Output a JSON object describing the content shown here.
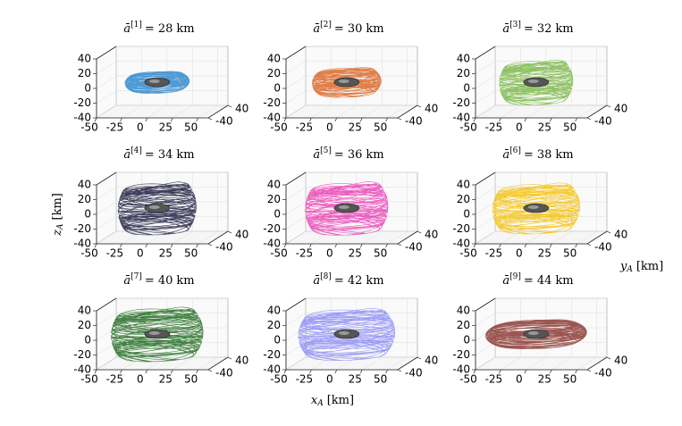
{
  "figure": {
    "xlabel": {
      "var": "x",
      "sub": "A",
      "unit": "[km]"
    },
    "ylabel": {
      "var": "y",
      "sub": "A",
      "unit": "[km]"
    },
    "zlabel": {
      "var": "z",
      "sub": "A",
      "unit": "[km]"
    }
  },
  "chart_data": [
    {
      "type": "torus3d",
      "title": {
        "symbol": "ā",
        "index": "[1]",
        "eq": "=",
        "value": 28,
        "unit": "km"
      },
      "color": "#2f88cc",
      "zmax": 10,
      "xlim": [
        -50,
        60
      ],
      "ylim": [
        -40,
        40
      ],
      "zlim": [
        -40,
        40
      ],
      "xticks": [
        -50,
        -25,
        0,
        25,
        50
      ],
      "yticks": [
        -40,
        40
      ],
      "zticks": [
        -40,
        -20,
        0,
        20,
        40
      ]
    },
    {
      "type": "torus3d",
      "title": {
        "symbol": "ā",
        "index": "[2]",
        "eq": "=",
        "value": 30,
        "unit": "km"
      },
      "color": "#d9692a",
      "zmax": 15,
      "xlim": [
        -50,
        60
      ],
      "ylim": [
        -40,
        40
      ],
      "zlim": [
        -40,
        40
      ],
      "xticks": [
        -50,
        -25,
        0,
        25,
        50
      ],
      "yticks": [
        -40,
        40
      ],
      "zticks": [
        -40,
        -20,
        0,
        20,
        40
      ]
    },
    {
      "type": "torus3d",
      "title": {
        "symbol": "ā",
        "index": "[3]",
        "eq": "=",
        "value": 32,
        "unit": "km"
      },
      "color": "#7ab648",
      "zmax": 25,
      "xlim": [
        -50,
        60
      ],
      "ylim": [
        -40,
        40
      ],
      "zlim": [
        -40,
        40
      ],
      "xticks": [
        -50,
        -25,
        0,
        25,
        50
      ],
      "yticks": [
        -40,
        40
      ],
      "zticks": [
        -40,
        -20,
        0,
        20,
        40
      ]
    },
    {
      "type": "torus3d",
      "title": {
        "symbol": "ā",
        "index": "[4]",
        "eq": "=",
        "value": 34,
        "unit": "km"
      },
      "color": "#1c1c40",
      "zmax": 30,
      "xlim": [
        -50,
        60
      ],
      "ylim": [
        -40,
        40
      ],
      "zlim": [
        -40,
        40
      ],
      "xticks": [
        -50,
        -25,
        0,
        25,
        50
      ],
      "yticks": [
        -40,
        40
      ],
      "zticks": [
        -40,
        -20,
        0,
        20,
        40
      ]
    },
    {
      "type": "torus3d",
      "title": {
        "symbol": "ā",
        "index": "[5]",
        "eq": "=",
        "value": 36,
        "unit": "km"
      },
      "color": "#ea3fb4",
      "zmax": 30,
      "xlim": [
        -50,
        60
      ],
      "ylim": [
        -40,
        40
      ],
      "zlim": [
        -40,
        40
      ],
      "xticks": [
        -50,
        -25,
        0,
        25,
        50
      ],
      "yticks": [
        -40,
        40
      ],
      "zticks": [
        -40,
        -20,
        0,
        20,
        40
      ]
    },
    {
      "type": "torus3d",
      "title": {
        "symbol": "ā",
        "index": "[6]",
        "eq": "=",
        "value": 38,
        "unit": "km"
      },
      "color": "#f2c20f",
      "zmax": 28,
      "xlim": [
        -50,
        60
      ],
      "ylim": [
        -40,
        40
      ],
      "zlim": [
        -40,
        40
      ],
      "xticks": [
        -50,
        -25,
        0,
        25,
        50
      ],
      "yticks": [
        -40,
        40
      ],
      "zticks": [
        -40,
        -20,
        0,
        20,
        40
      ]
    },
    {
      "type": "torus3d",
      "title": {
        "symbol": "ā",
        "index": "[7]",
        "eq": "=",
        "value": 40,
        "unit": "km"
      },
      "color": "#1f6b1f",
      "zmax": 30,
      "xlim": [
        -50,
        60
      ],
      "ylim": [
        -40,
        40
      ],
      "zlim": [
        -40,
        40
      ],
      "xticks": [
        -50,
        -25,
        0,
        25,
        50
      ],
      "yticks": [
        -40,
        40
      ],
      "zticks": [
        -40,
        -20,
        0,
        20,
        40
      ]
    },
    {
      "type": "torus3d",
      "title": {
        "symbol": "ā",
        "index": "[8]",
        "eq": "=",
        "value": 42,
        "unit": "km"
      },
      "color": "#8d8df5",
      "zmax": 28,
      "xlim": [
        -50,
        60
      ],
      "ylim": [
        -40,
        40
      ],
      "zlim": [
        -40,
        40
      ],
      "xticks": [
        -50,
        -25,
        0,
        25,
        50
      ],
      "yticks": [
        -40,
        40
      ],
      "zticks": [
        -40,
        -20,
        0,
        20,
        40
      ]
    },
    {
      "type": "torus3d",
      "title": {
        "symbol": "ā",
        "index": "[9]",
        "eq": "=",
        "value": 44,
        "unit": "km"
      },
      "color": "#8b3a34",
      "zmax": 12,
      "xlim": [
        -50,
        60
      ],
      "ylim": [
        -40,
        40
      ],
      "zlim": [
        -40,
        40
      ],
      "xticks": [
        -50,
        -25,
        0,
        25,
        50
      ],
      "yticks": [
        -40,
        40
      ],
      "zticks": [
        -40,
        -20,
        0,
        20,
        40
      ]
    }
  ]
}
